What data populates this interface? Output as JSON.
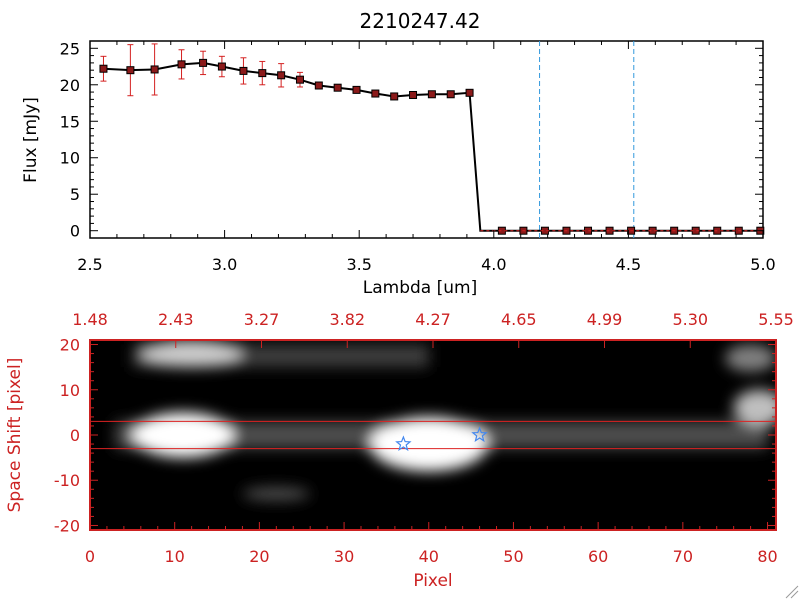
{
  "chart_data": [
    {
      "type": "line",
      "title": "2210247.42",
      "xlabel": "Lambda [um]",
      "ylabel": "Flux [mJy]",
      "xlim": [
        2.5,
        5.0
      ],
      "ylim": [
        -1,
        26
      ],
      "x_ticks": [
        "2.5",
        "3.0",
        "3.5",
        "4.0",
        "4.5",
        "5.0"
      ],
      "y_ticks": [
        "0",
        "5",
        "10",
        "15",
        "20",
        "25"
      ],
      "series": [
        {
          "name": "flux",
          "x": [
            2.55,
            2.65,
            2.74,
            2.84,
            2.92,
            2.99,
            3.07,
            3.14,
            3.21,
            3.28,
            3.35,
            3.42,
            3.49,
            3.56,
            3.63,
            3.7,
            3.77,
            3.84,
            3.91,
            3.95,
            4.03,
            4.11,
            4.19,
            4.27,
            4.35,
            4.43,
            4.51,
            4.59,
            4.67,
            4.75,
            4.83,
            4.91,
            4.99
          ],
          "values": [
            22.2,
            22.0,
            22.1,
            22.8,
            23.0,
            22.5,
            21.9,
            21.6,
            21.3,
            20.7,
            19.9,
            19.6,
            19.3,
            18.8,
            18.4,
            18.6,
            18.7,
            18.7,
            18.9,
            0,
            0,
            0,
            0,
            0,
            0,
            0,
            0,
            0,
            0,
            0,
            0,
            0,
            0
          ],
          "errors": [
            1.7,
            3.5,
            3.5,
            2.0,
            1.6,
            1.4,
            1.8,
            1.6,
            1.6,
            1.0,
            0.4,
            0.4,
            0.3,
            0.3,
            0.3,
            0.3,
            0.3,
            0.3,
            0.3,
            0,
            0,
            0,
            0,
            0,
            0,
            0,
            0,
            0,
            0,
            0,
            0,
            0,
            0
          ]
        }
      ],
      "vertical_lines": [
        4.17,
        4.52
      ],
      "colors": {
        "line": "#000000",
        "marker": "#8b1a1a",
        "errorbar": "#d42020",
        "vline": "#3399dd"
      }
    },
    {
      "type": "heatmap",
      "xlabel": "Pixel",
      "ylabel": "Space Shift [pixel]",
      "xlim": [
        0,
        81
      ],
      "ylim": [
        -21,
        21
      ],
      "x_ticks": [
        "0",
        "10",
        "20",
        "30",
        "40",
        "50",
        "60",
        "70",
        "80"
      ],
      "y_ticks": [
        "-20",
        "-10",
        "0",
        "10",
        "20"
      ],
      "top_axis_ticks": [
        "1.48",
        "2.43",
        "3.27",
        "3.82",
        "4.27",
        "4.65",
        "4.99",
        "5.30",
        "5.55"
      ],
      "horizontal_lines": [
        3,
        -3
      ],
      "star_markers": [
        {
          "x": 37,
          "y": -2
        },
        {
          "x": 46,
          "y": 0
        }
      ],
      "blobs": [
        {
          "x": 11,
          "y": 0,
          "intensity": 1.0
        },
        {
          "x": 40,
          "y": -2,
          "intensity": 1.0
        },
        {
          "x": 12,
          "y": 18,
          "intensity": 0.8
        },
        {
          "x": 79,
          "y": 6,
          "intensity": 0.75
        },
        {
          "x": 78,
          "y": 17,
          "intensity": 0.5
        },
        {
          "x": 22,
          "y": -13,
          "intensity": 0.3
        }
      ],
      "colors": {
        "axis": "#cc2222",
        "line": "#dd2222",
        "star": "#4488ee"
      }
    }
  ]
}
